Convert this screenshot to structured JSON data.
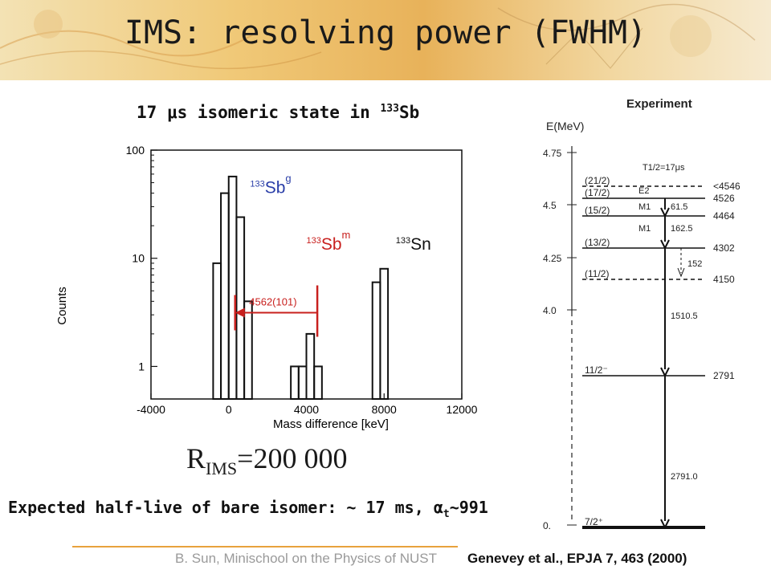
{
  "slide": {
    "title": "IMS: resolving power (FWHM)",
    "resolving_power": {
      "label": "R",
      "subscript": "IMS",
      "value": "=200 000"
    },
    "expected": {
      "text": "Expected half-live of bare isomer: ~ 17 ms, ",
      "alpha": "α",
      "sub": "t",
      "tail": "~991"
    },
    "footer_author": "B. Sun, Minischool on the Physics of NUST",
    "footer_ref": "Genevey et al., EPJA 7, 463 (2000)",
    "colors": {
      "banner": "#f0c978",
      "accent_line": "#e8a23c",
      "red": "#c8201e",
      "blue": "#2a3ea8",
      "scheme_arrow": "#111111"
    }
  },
  "chart_data": [
    {
      "type": "bar",
      "title": "17 μs isomeric state in 133Sb",
      "title_parts": {
        "pre": "17 ",
        "mu": "μ",
        "mid": "s isomeric state in ",
        "sup": "133",
        "post": "Sb"
      },
      "xlabel": "Mass difference [keV]",
      "ylabel": "Counts",
      "xlim": [
        -4000,
        12000
      ],
      "ylim": [
        0.5,
        100
      ],
      "yscale": "log",
      "grid": false,
      "x_ticks": [
        -4000,
        0,
        4000,
        8000,
        12000
      ],
      "y_ticks": [
        1,
        10,
        100
      ],
      "bin_width": 400,
      "bins": [
        {
          "x": -600,
          "count": 9
        },
        {
          "x": -200,
          "count": 40
        },
        {
          "x": 200,
          "count": 57
        },
        {
          "x": 600,
          "count": 24
        },
        {
          "x": 1000,
          "count": 4
        },
        {
          "x": 3400,
          "count": 1
        },
        {
          "x": 3800,
          "count": 1
        },
        {
          "x": 4200,
          "count": 2
        },
        {
          "x": 4600,
          "count": 1
        },
        {
          "x": 7600,
          "count": 6
        },
        {
          "x": 8000,
          "count": 8
        }
      ],
      "peak_labels": [
        {
          "mass": "133",
          "symbol": "Sb",
          "state": "g",
          "color": "#2a3ea8",
          "x": 1100,
          "y": 40
        },
        {
          "mass": "133",
          "symbol": "Sb",
          "state": "m",
          "color": "#c8201e",
          "x": 4000,
          "y": 12
        },
        {
          "mass": "133",
          "symbol": "Sn",
          "state": "",
          "color": "#111111",
          "x": 8600,
          "y": 12
        }
      ],
      "annotation": {
        "text": "4562(101)",
        "from": 0,
        "to": 4562,
        "y": 3.6,
        "color": "#c8201e"
      }
    },
    {
      "type": "level-scheme",
      "title": "Experiment",
      "axis_label": "E(MeV)",
      "ylim": [
        0,
        4.75
      ],
      "y_ticks": [
        {
          "value": 4.75,
          "label": "4.75"
        },
        {
          "value": 4.5,
          "label": "4.5"
        },
        {
          "value": 4.25,
          "label": "4.25"
        },
        {
          "value": 4.0,
          "label": "4.0"
        },
        {
          "value": 0,
          "label": "0."
        }
      ],
      "half_life_label": "T1/2=17μs",
      "levels": [
        {
          "spin": "(21/2)",
          "energy_label": "<4546",
          "dashed": true
        },
        {
          "spin": "(17/2)",
          "energy_label": "4526",
          "dashed": false
        },
        {
          "spin": "(15/2)",
          "energy_label": "4464",
          "dashed": false
        },
        {
          "spin": "(13/2)",
          "energy_label": "4302",
          "dashed": false
        },
        {
          "spin": "(11/2)",
          "energy_label": "4150",
          "dashed": true
        },
        {
          "spin": "11/2⁻",
          "energy_label": "2791",
          "dashed": false
        },
        {
          "spin": "7/2⁺",
          "energy_label": "",
          "dashed": false
        }
      ],
      "transitions": [
        {
          "label": "E2"
        },
        {
          "label": "M1"
        },
        {
          "label": "61.5"
        },
        {
          "label": "M1"
        },
        {
          "label": "162.5"
        },
        {
          "label": "152"
        },
        {
          "label": "1510.5"
        },
        {
          "label": "2791.0"
        }
      ]
    }
  ]
}
